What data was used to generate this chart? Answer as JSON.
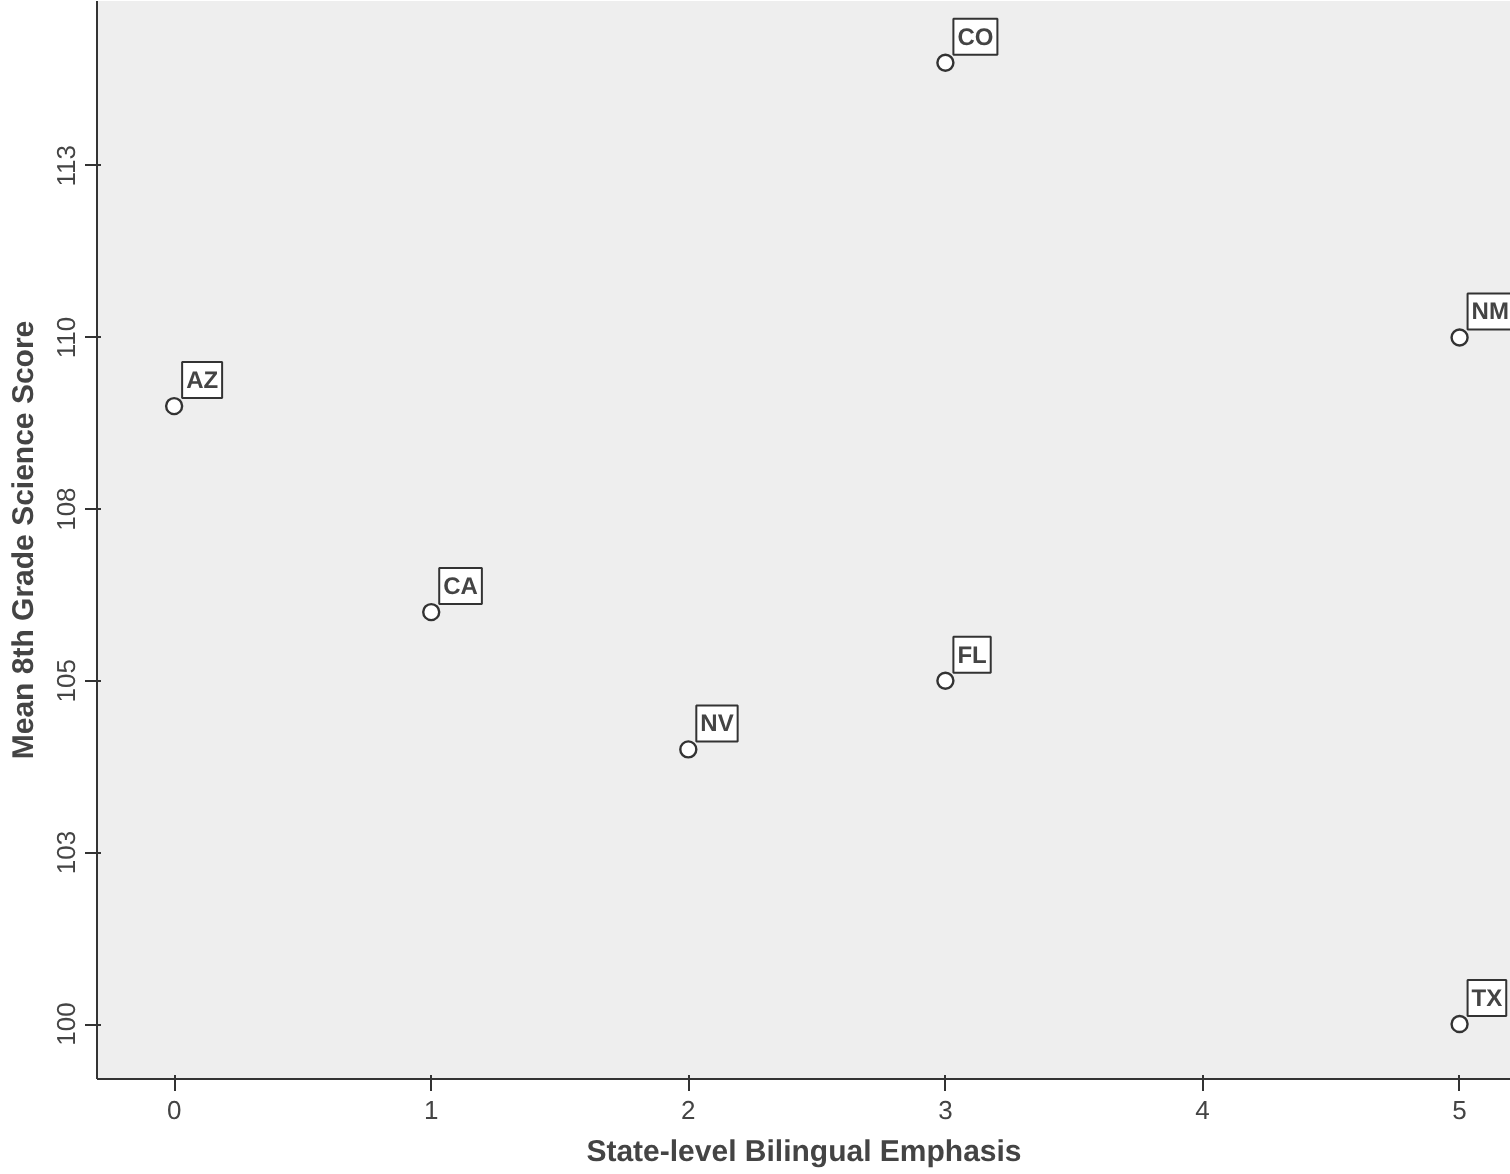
{
  "chart_data": {
    "type": "scatter",
    "xlabel": "State-level Bilingual Emphasis",
    "ylabel": "Mean 8th Grade Science Score",
    "x": [
      0,
      1,
      2,
      3,
      3,
      5,
      5
    ],
    "series": [
      {
        "color": "#333333",
        "values": [
          109,
          106,
          104,
          105,
          114,
          110,
          100
        ]
      }
    ],
    "marker": "circle",
    "xlim": [
      -0.3,
      5.2
    ],
    "ylim": [
      99.2,
      114.9
    ],
    "xticks": [
      0,
      1,
      2,
      3,
      4,
      5
    ],
    "yticks": [
      100,
      {
        "value": 102.5,
        "label": "103"
      },
      105,
      {
        "value": 107.5,
        "label": "108"
      },
      110,
      {
        "value": 112.5,
        "label": "113"
      }
    ],
    "annotations": [
      {
        "text": "AZ",
        "x": 0,
        "y": 109
      },
      {
        "text": "CA",
        "x": 1,
        "y": 106
      },
      {
        "text": "NV",
        "x": 2,
        "y": 104
      },
      {
        "text": "FL",
        "x": 3,
        "y": 105
      },
      {
        "text": "CO",
        "x": 3,
        "y": 114
      },
      {
        "text": "NM",
        "x": 5,
        "y": 110
      },
      {
        "text": "TX",
        "x": 5,
        "y": 100
      }
    ]
  }
}
